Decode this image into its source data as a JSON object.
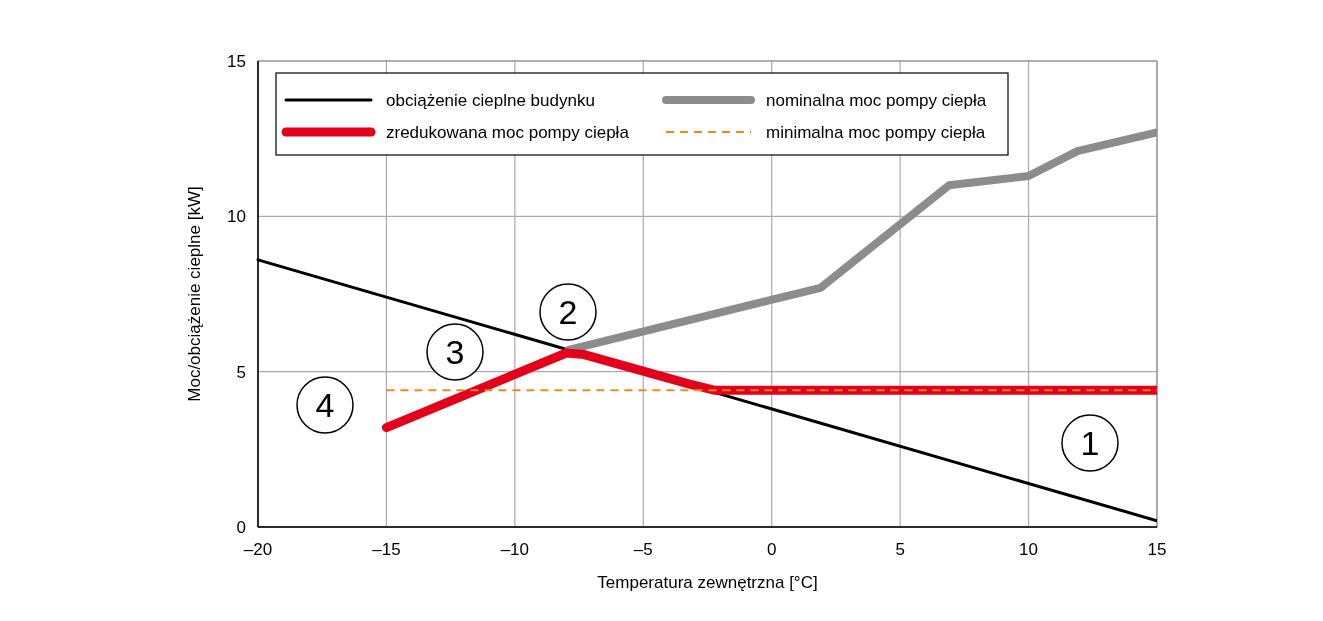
{
  "chart_data": {
    "type": "line",
    "xlabel": "Temperatura zewnętrzna [°C]",
    "ylabel": "Moc/obciążenie cieplne [kW]",
    "xlim": [
      -20,
      15
    ],
    "ylim": [
      0,
      15
    ],
    "xticks": [
      {
        "value": -20,
        "label": "–20"
      },
      {
        "value": -15,
        "label": "–15"
      },
      {
        "value": -10,
        "label": "–10"
      },
      {
        "value": -5,
        "label": "–5"
      },
      0,
      5,
      10,
      15
    ],
    "yticks": [
      0,
      5,
      10,
      15
    ],
    "grid": true,
    "legend": "top left",
    "marker": "none",
    "series": [
      {
        "name": "obciążenie cieplne budynku",
        "color": "#000000",
        "x": [
          -20,
          15
        ],
        "values": [
          8.6,
          0.2
        ],
        "line_style": "solid"
      },
      {
        "name": "nominalna moc pompy ciepła",
        "color": "#8c8c8c",
        "x": [
          -7.9,
          1.9,
          6.9,
          10,
          11.9,
          15
        ],
        "values": [
          5.7,
          7.7,
          11,
          11.3,
          12.1,
          12.7
        ],
        "line_style": "solid"
      },
      {
        "name": "zredukowana moc pompy ciepła",
        "color": "#e2001a",
        "x": [
          -15,
          -8,
          -7.3,
          -3.2,
          -2.2,
          15
        ],
        "values": [
          3.2,
          5.6,
          5.55,
          4.6,
          4.4,
          4.4
        ],
        "line_style": "solid"
      },
      {
        "name": "minimalna moc pompy ciepła",
        "color": "#f08a1c",
        "x": [
          -15,
          15
        ],
        "values": [
          4.4,
          4.4
        ],
        "line_style": "dashed"
      }
    ],
    "annotations": [
      "1",
      "2",
      "3",
      "4"
    ]
  }
}
